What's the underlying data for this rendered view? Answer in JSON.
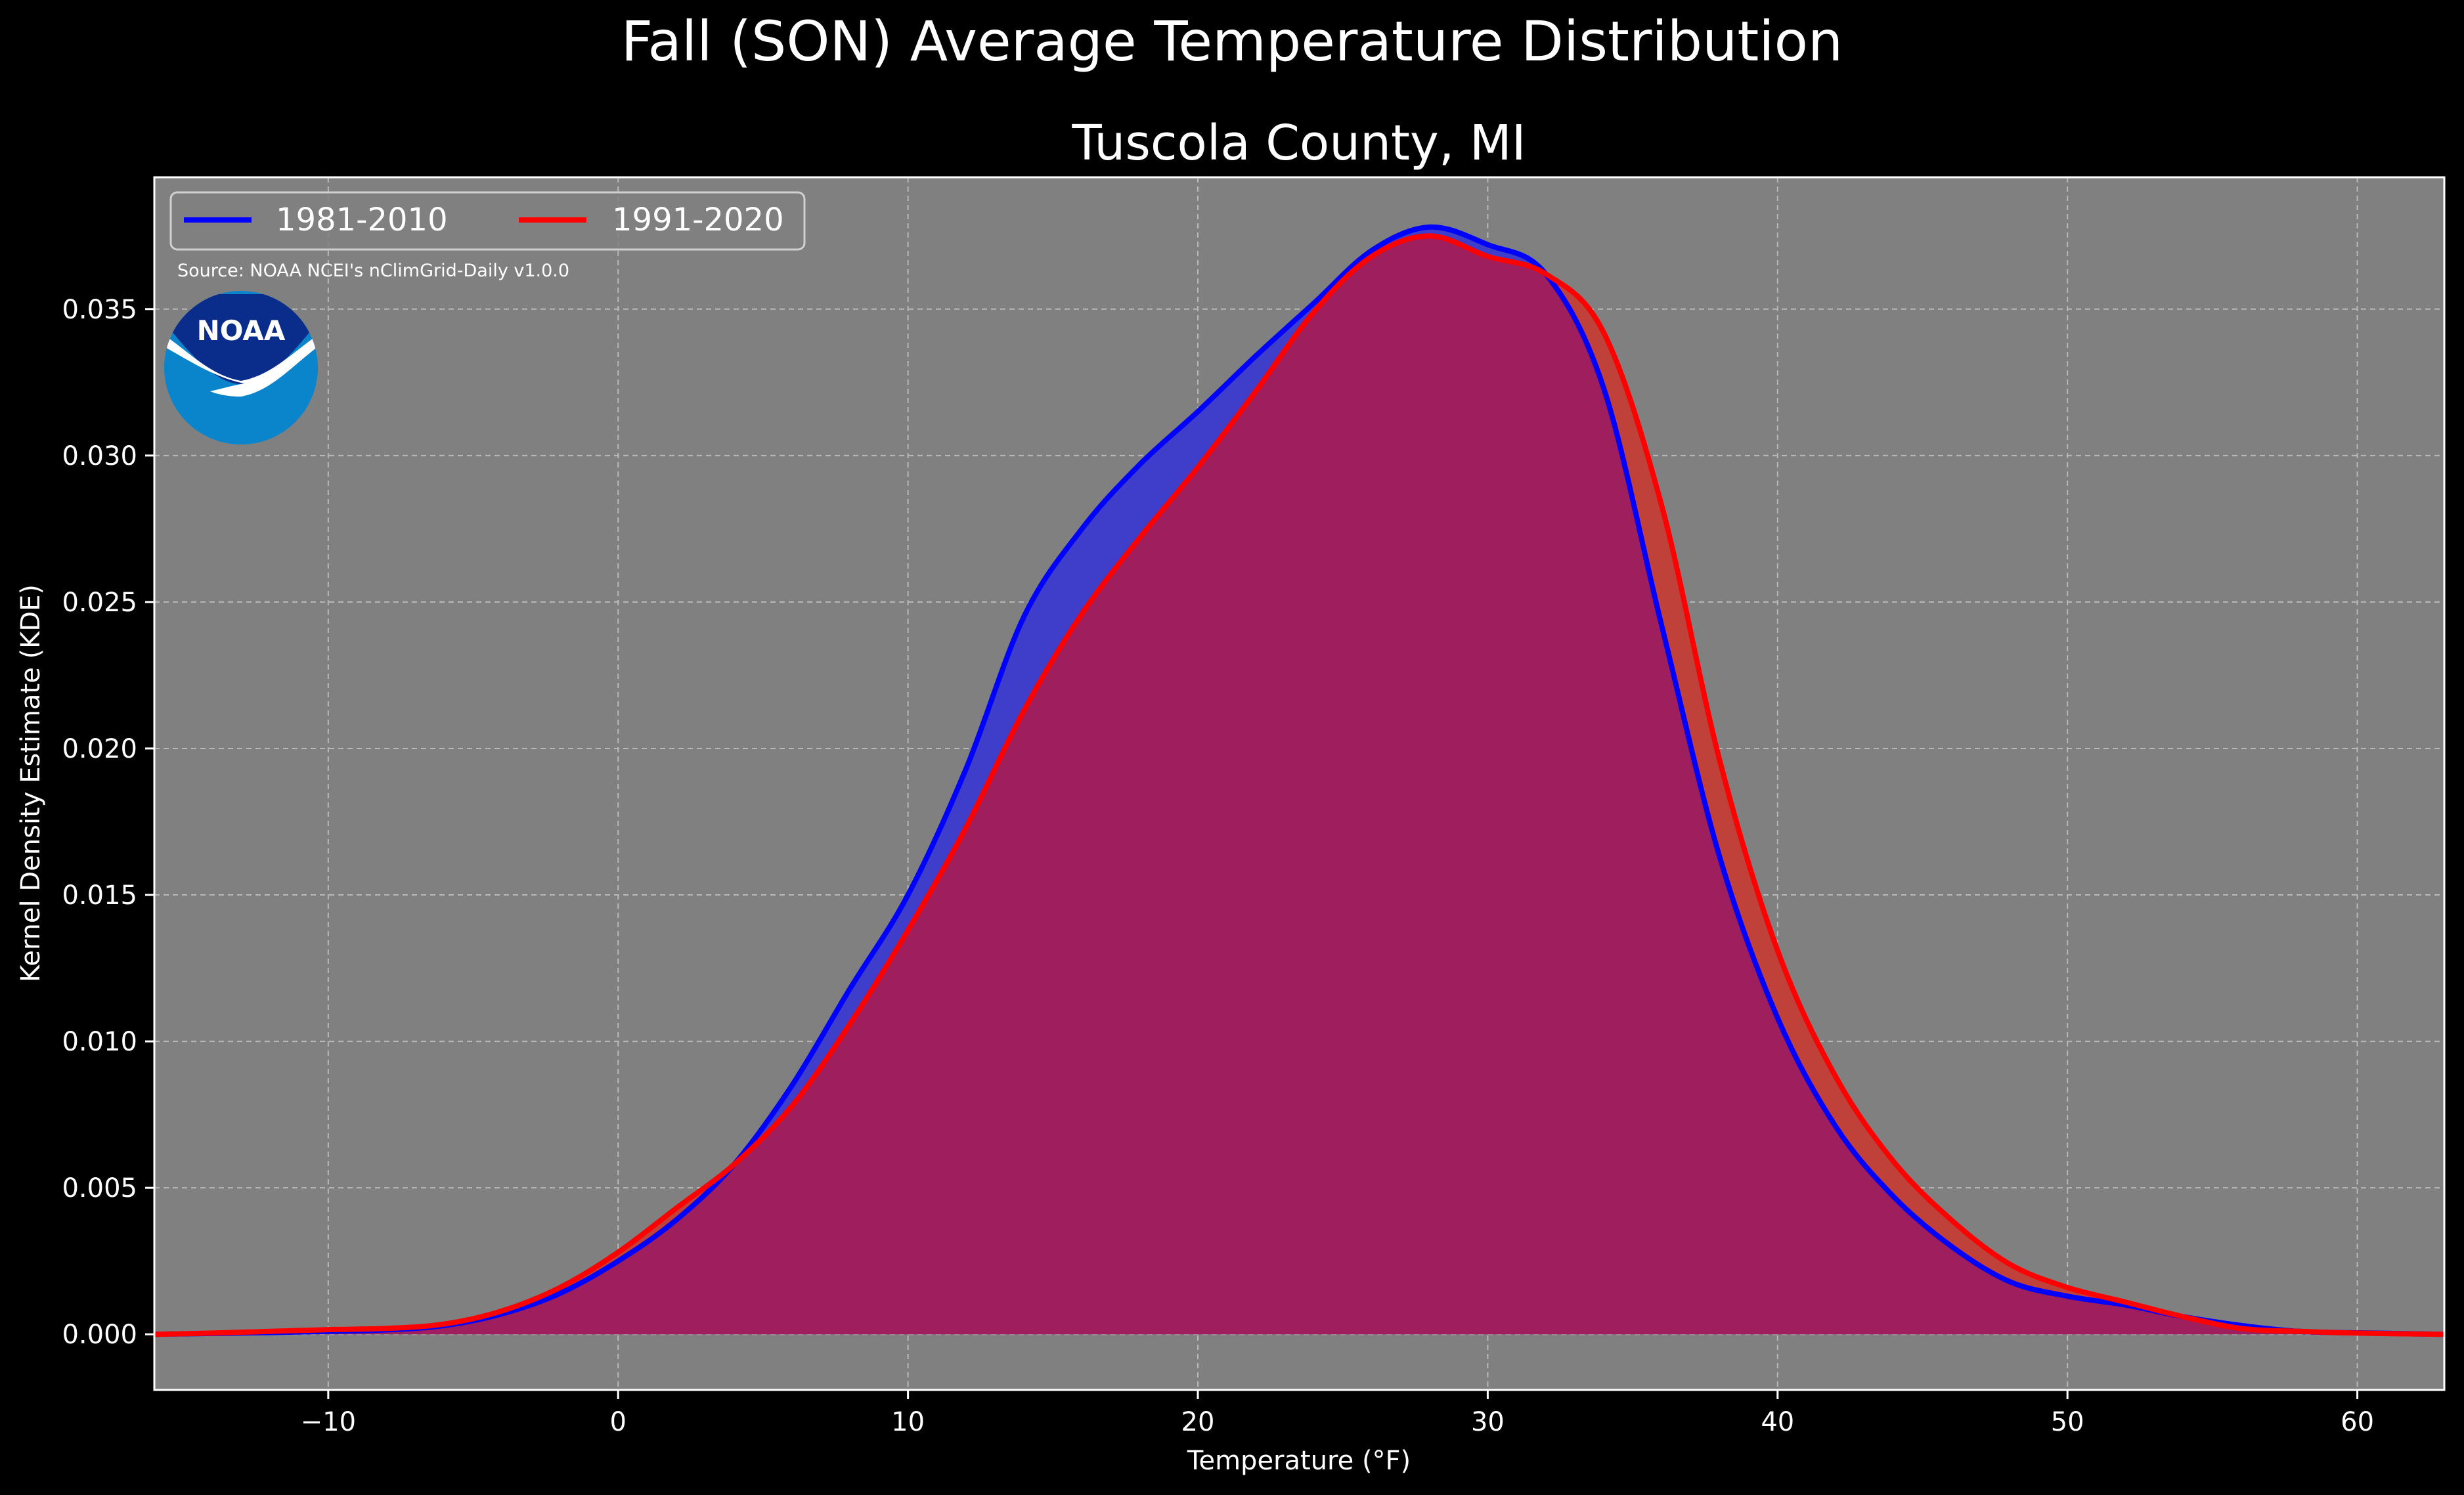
{
  "chart_data": {
    "type": "area",
    "suptitle": "Fall (SON) Average Temperature Distribution",
    "title": "Tuscola County, MI",
    "xlabel": "Temperature (°F)",
    "ylabel": "Kernel Density Estimate (KDE)",
    "xlim": [
      -16,
      63
    ],
    "ylim": [
      -0.0019,
      0.0395
    ],
    "xticks": [
      -10,
      0,
      10,
      20,
      30,
      40,
      50,
      60
    ],
    "xtick_labels": [
      "−10",
      "0",
      "10",
      "20",
      "30",
      "40",
      "50",
      "60"
    ],
    "yticks": [
      0,
      0.005,
      0.01,
      0.015,
      0.02,
      0.025,
      0.03,
      0.035
    ],
    "ytick_labels": [
      "0.000",
      "0.005",
      "0.010",
      "0.015",
      "0.020",
      "0.025",
      "0.030",
      "0.035"
    ],
    "grid": true,
    "legend_position": "top-left",
    "source_note": "Source: NOAA NCEI's nClimGrid-Daily v1.0.0",
    "logo_text": "NOAA",
    "colors": {
      "figure_bg": "#000000",
      "axes_bg": "#808080",
      "series_1981": "#0000ff",
      "series_1991": "#ff0000",
      "fill_1981": "#3e3ecb",
      "fill_overlap": "#9e1e5e",
      "fill_1991_only": "#c0403a",
      "noaa_dark": "#0a2d8c",
      "noaa_light": "#0a85cc"
    },
    "x": [
      -16,
      -14,
      -12,
      -10,
      -8,
      -6,
      -4,
      -2,
      0,
      2,
      4,
      6,
      8,
      10,
      12,
      14,
      16,
      18,
      20,
      22,
      24,
      26,
      28,
      30,
      32,
      34,
      36,
      38,
      40,
      42,
      44,
      46,
      48,
      50,
      52,
      54,
      56,
      58,
      60,
      63
    ],
    "series": [
      {
        "name": "1981-2010",
        "values": [
          0.0,
          3e-05,
          6e-05,
          0.0001,
          0.00015,
          0.0003,
          0.0007,
          0.0014,
          0.0025,
          0.0039,
          0.0058,
          0.0085,
          0.0118,
          0.015,
          0.0193,
          0.0245,
          0.0275,
          0.0297,
          0.0315,
          0.0334,
          0.0352,
          0.037,
          0.0378,
          0.0372,
          0.0362,
          0.0323,
          0.0242,
          0.0163,
          0.0108,
          0.0071,
          0.0047,
          0.003,
          0.0018,
          0.0013,
          0.001,
          0.0006,
          0.0003,
          0.0001,
          5e-05,
          0.0
        ]
      },
      {
        "name": "1991-2020",
        "values": [
          0.0,
          4e-05,
          0.0001,
          0.00016,
          0.0002,
          0.00035,
          0.0008,
          0.0016,
          0.0028,
          0.0043,
          0.0058,
          0.0078,
          0.0106,
          0.0138,
          0.0173,
          0.0213,
          0.0246,
          0.0272,
          0.0296,
          0.0322,
          0.0349,
          0.0368,
          0.0375,
          0.0368,
          0.0362,
          0.0342,
          0.0283,
          0.0196,
          0.0131,
          0.0088,
          0.0059,
          0.0039,
          0.0024,
          0.0016,
          0.0011,
          0.0006,
          0.0002,
          0.0001,
          4e-05,
          0.0
        ]
      }
    ]
  }
}
